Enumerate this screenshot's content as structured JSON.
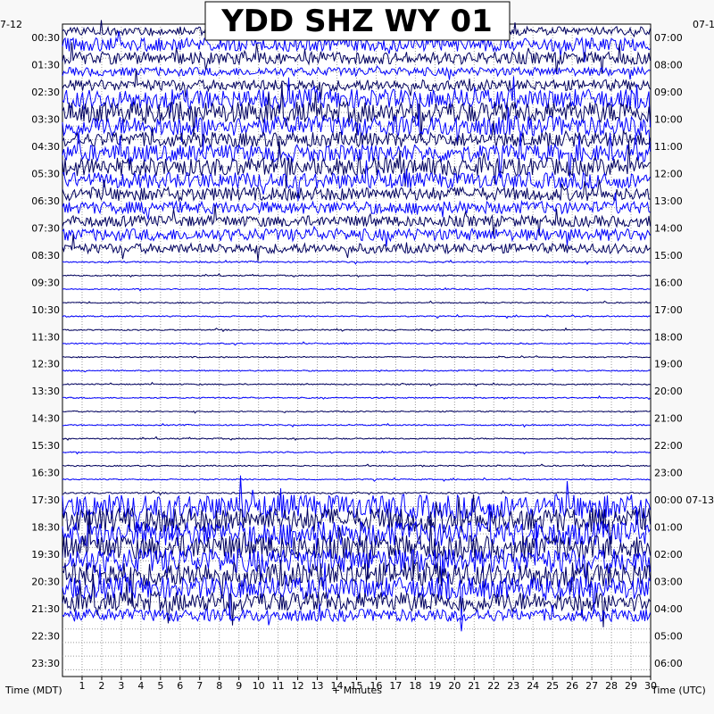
{
  "chart_data": {
    "type": "line",
    "title": "YDD SHZ WY 01",
    "left_date_label": "7-12",
    "right_top_date_label": "07-1",
    "right_midnight_date": "07-13",
    "left_axis_title": "Time (MDT)",
    "right_axis_title": "Time (UTC)",
    "x_axis_title": "+ Minutes",
    "x_ticks": [
      "1",
      "2",
      "3",
      "4",
      "5",
      "6",
      "7",
      "8",
      "9",
      "10",
      "11",
      "12",
      "13",
      "14",
      "15",
      "16",
      "17",
      "18",
      "19",
      "20",
      "21",
      "22",
      "23",
      "24",
      "25",
      "26",
      "27",
      "28",
      "29",
      "30"
    ],
    "xlim": [
      0,
      30
    ],
    "row_minutes": 30,
    "trace_colors": [
      "#000060",
      "#0000ff"
    ],
    "clip_color": "#ff0000",
    "left_row_labels": [
      "00:30",
      "01:30",
      "02:30",
      "03:30",
      "04:30",
      "05:30",
      "06:30",
      "07:30",
      "08:30",
      "09:30",
      "10:30",
      "11:30",
      "12:30",
      "13:30",
      "14:30",
      "15:30",
      "16:30",
      "17:30",
      "18:30",
      "19:30",
      "20:30",
      "21:30",
      "22:30",
      "23:30"
    ],
    "right_row_labels": [
      "07:00",
      "08:00",
      "09:00",
      "10:00",
      "11:00",
      "12:00",
      "13:00",
      "14:00",
      "15:00",
      "16:00",
      "17:00",
      "18:00",
      "19:00",
      "20:00",
      "21:00",
      "22:00",
      "23:00",
      "00:00",
      "01:00",
      "02:00",
      "03:00",
      "04:00",
      "05:00",
      "06:00"
    ],
    "row_activity": [
      0.35,
      0.55,
      0.5,
      0.35,
      0.45,
      0.8,
      0.85,
      0.8,
      0.6,
      0.7,
      0.75,
      0.65,
      0.55,
      0.5,
      0.45,
      0.5,
      0.4,
      0.06,
      0.05,
      0.05,
      0.05,
      0.05,
      0.05,
      0.05,
      0.05,
      0.05,
      0.05,
      0.05,
      0.05,
      0.05,
      0.05,
      0.05,
      0.05,
      0.05,
      0.06,
      1.0,
      1.0,
      1.0,
      1.0,
      1.0,
      1.0,
      0.9,
      0.8,
      0.5,
      0.0,
      0.0,
      0.0,
      0.0
    ]
  }
}
